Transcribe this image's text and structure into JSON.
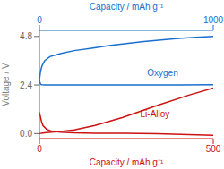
{
  "chart_data": {
    "type": "line",
    "xlabel": "Capacity  / mAh g⁻¹",
    "x2label": "Capacity  / mAh g⁻¹",
    "ylabel": "Voltage / V",
    "xlim": [
      0,
      500
    ],
    "xticks": [
      0,
      500
    ],
    "x2lim": [
      0,
      1000
    ],
    "x2ticks": [
      0,
      1000
    ],
    "ylim": [
      -0.25,
      5.1
    ],
    "yticks": [
      {
        "value": 0.0,
        "label": "0.0"
      },
      2.4,
      4.8
    ],
    "grid": false,
    "series": [
      {
        "axis": "x2",
        "color": "#1a6fce",
        "x": [
          0,
          3,
          7,
          15,
          30,
          60,
          120,
          200,
          300,
          400,
          500,
          600,
          700,
          800,
          900,
          1000
        ],
        "values": [
          2.65,
          2.85,
          3.1,
          3.35,
          3.6,
          3.8,
          3.95,
          4.1,
          4.22,
          4.35,
          4.45,
          4.55,
          4.63,
          4.7,
          4.76,
          4.8
        ]
      },
      {
        "axis": "x2",
        "color": "#1a6fce",
        "x": [
          0,
          3,
          7,
          15,
          30,
          60,
          120,
          200,
          400,
          600,
          800,
          1000
        ],
        "values": [
          2.65,
          2.52,
          2.43,
          2.41,
          2.4,
          2.4,
          2.4,
          2.4,
          2.4,
          2.4,
          2.4,
          2.41
        ]
      },
      {
        "axis": "x",
        "color": "#cc1111",
        "x": [
          0,
          3,
          6,
          10,
          20,
          35,
          60,
          100,
          160,
          240,
          340,
          430,
          500
        ],
        "values": [
          1.05,
          0.82,
          0.6,
          0.4,
          0.22,
          0.12,
          0.07,
          0.04,
          0.02,
          0.01,
          -0.01,
          -0.05,
          -0.08
        ]
      },
      {
        "axis": "x",
        "color": "#cc1111",
        "x": [
          0,
          3,
          6,
          10,
          20,
          35,
          60,
          100,
          160,
          240,
          340,
          430,
          500
        ],
        "values": [
          0.0,
          0.01,
          0.02,
          0.03,
          0.05,
          0.07,
          0.1,
          0.18,
          0.4,
          0.8,
          1.4,
          1.9,
          2.25
        ]
      }
    ],
    "annotations": [
      {
        "text": "Oxygen",
        "color": "#1a6fce"
      },
      {
        "text": "Li-Alloy",
        "color": "#cc1111"
      }
    ]
  }
}
